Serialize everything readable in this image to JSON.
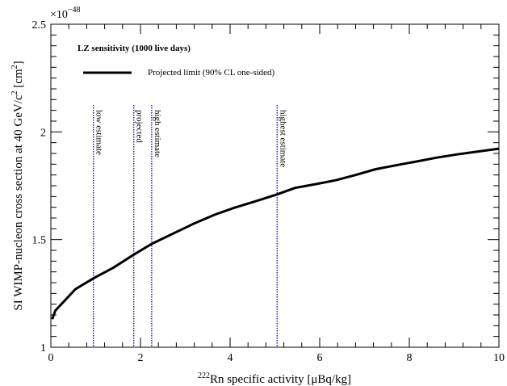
{
  "chart_data": {
    "type": "line",
    "title": "",
    "xlabel_sup": "222",
    "xlabel_main": "Rn specific activity [μBq/kg]",
    "ylabel_main": "SI WIMP-nucleon cross section at 40 GeV/c",
    "ylabel_sup": "2",
    "ylabel_end": " [cm",
    "ylabel_sup2": "2",
    "ylabel_close": "]",
    "xlim": [
      0,
      10
    ],
    "ylim": [
      1.0,
      2.5
    ],
    "x_ticks": [
      0,
      2,
      4,
      6,
      8,
      10
    ],
    "y_ticks": [
      1,
      1.5,
      2,
      2.5
    ],
    "y_multiplier_base": "×10",
    "y_multiplier_exp": "−48",
    "grid": false,
    "legend": {
      "placement": "top-left",
      "title": "LZ sensitivity (1000 live days)",
      "entries": [
        {
          "label": "Projected limit (90% CL one-sided)"
        }
      ]
    },
    "series": [
      {
        "color": "#000000",
        "x": [
          0.03,
          0.1,
          0.55,
          0.95,
          1.4,
          1.85,
          2.25,
          2.75,
          3.2,
          3.65,
          4.1,
          4.6,
          5.05,
          5.45,
          5.9,
          6.35,
          6.8,
          7.25,
          7.7,
          8.15,
          8.6,
          9.05,
          9.5,
          10.0
        ],
        "y": [
          1.13,
          1.17,
          1.27,
          1.32,
          1.37,
          1.43,
          1.48,
          1.53,
          1.575,
          1.615,
          1.648,
          1.68,
          1.71,
          1.74,
          1.757,
          1.775,
          1.8,
          1.827,
          1.845,
          1.862,
          1.88,
          1.895,
          1.908,
          1.922
        ]
      }
    ],
    "annotations": [
      {
        "x": 0.95,
        "label": "low estimate",
        "color": "#1a1aa6"
      },
      {
        "x": 1.85,
        "label": "projected",
        "color": "#1a1aa6"
      },
      {
        "x": 2.25,
        "label": "high estimate",
        "color": "#1a1aa6"
      },
      {
        "x": 5.05,
        "label": "highest estimate",
        "color": "#1a1aa6"
      }
    ]
  }
}
